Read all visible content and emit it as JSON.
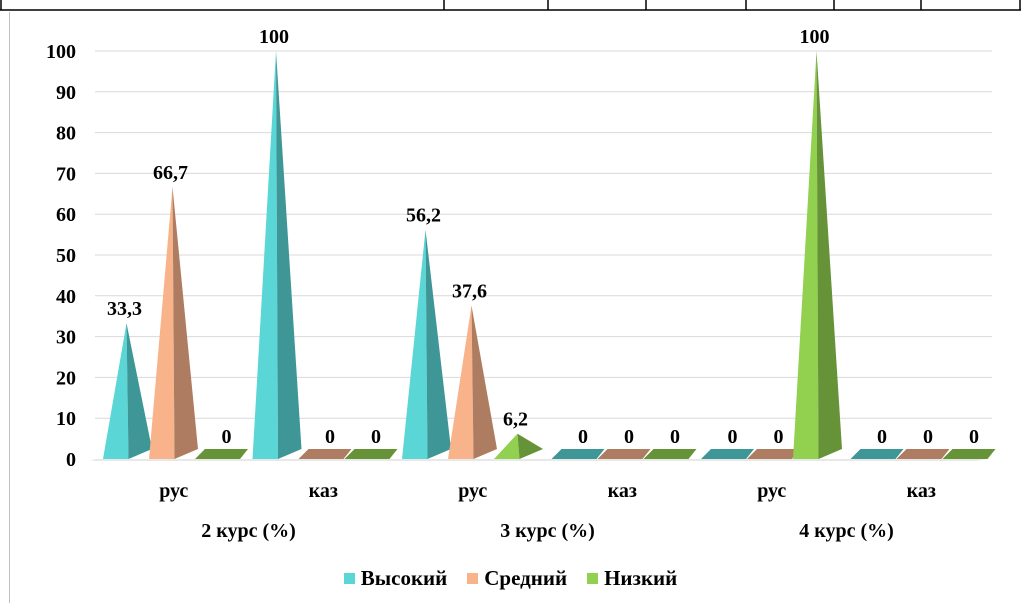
{
  "chart_data": {
    "type": "bar",
    "bar_shape": "3d-cone",
    "groups": [
      {
        "label": "2 курс (%)",
        "categories": [
          "рус",
          "каз"
        ]
      },
      {
        "label": "3 курс (%)",
        "categories": [
          "рус",
          "каз"
        ]
      },
      {
        "label": "4 курс (%)",
        "categories": [
          "рус",
          "каз"
        ]
      }
    ],
    "categories": [
      "рус",
      "каз",
      "рус",
      "каз",
      "рус",
      "каз"
    ],
    "series": [
      {
        "name": "Высокий",
        "color": "#5ad6d6",
        "values": [
          33.3,
          100,
          56.2,
          0,
          0,
          0
        ],
        "labels": [
          "33,3",
          "100",
          "56,2",
          "0",
          "0",
          "0"
        ]
      },
      {
        "name": "Средний",
        "color": "#f8b38a",
        "values": [
          66.7,
          0,
          37.6,
          0,
          0,
          0
        ],
        "labels": [
          "66,7",
          "0",
          "37,6",
          "0",
          "0",
          "0"
        ]
      },
      {
        "name": "Низкий",
        "color": "#92d050",
        "values": [
          0,
          0,
          6.2,
          0,
          100,
          0
        ],
        "labels": [
          "0",
          "0",
          "6,2",
          "0",
          "100",
          "0"
        ]
      }
    ],
    "ylim": [
      0,
      100
    ],
    "yticks": [
      "0",
      "10",
      "20",
      "30",
      "40",
      "50",
      "60",
      "70",
      "80",
      "90",
      "100"
    ],
    "grid": true,
    "legend_position": "bottom"
  }
}
